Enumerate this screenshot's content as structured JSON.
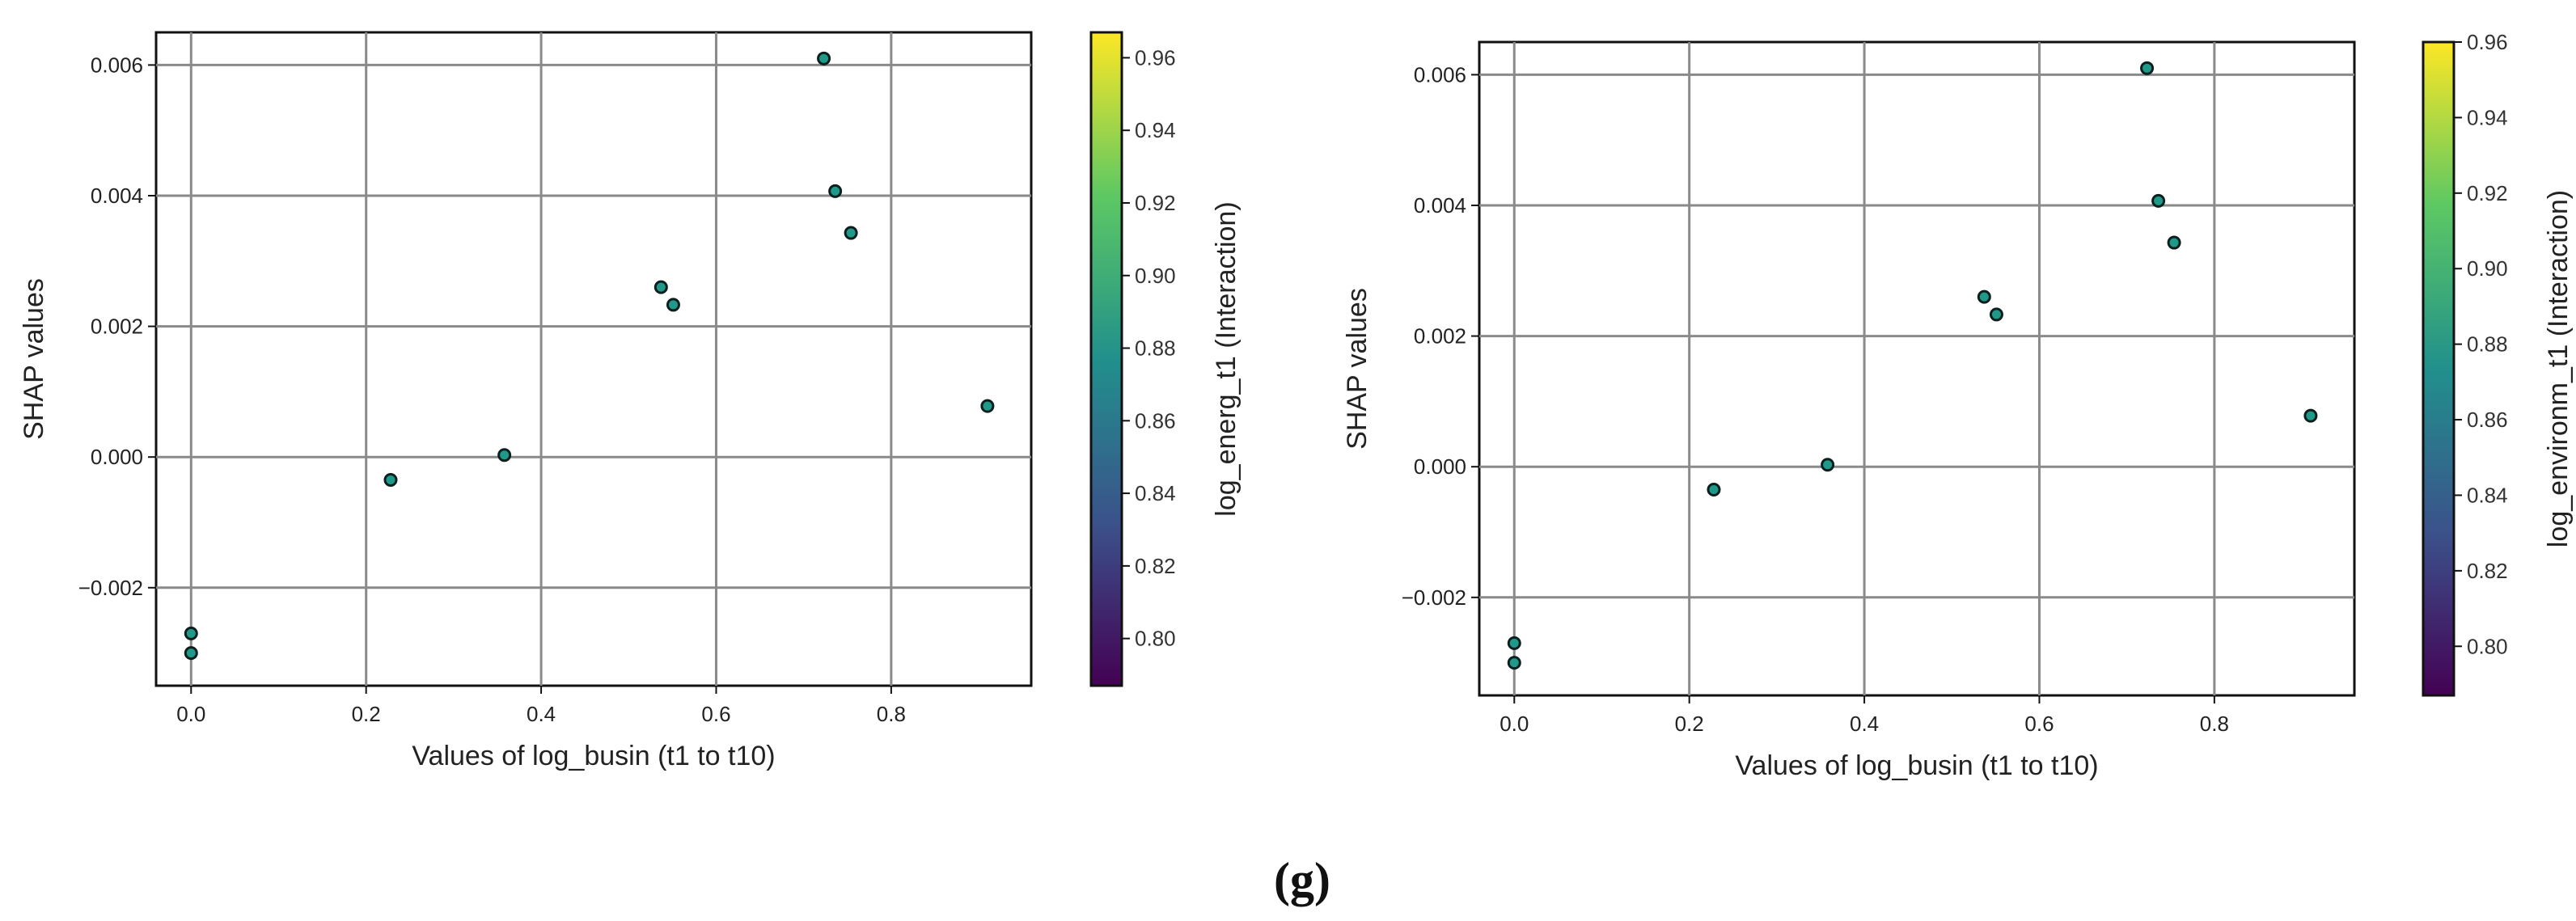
{
  "caption": "(g)",
  "chart_data": [
    {
      "type": "scatter",
      "title": "",
      "xlabel": "Values of log_busin (t1 to t10)",
      "ylabel": "SHAP values",
      "xlim": [
        -0.04,
        0.96
      ],
      "ylim": [
        -0.0035,
        0.0065
      ],
      "xticks": [
        0.0,
        0.2,
        0.4,
        0.6,
        0.8
      ],
      "xtick_labels": [
        "0.0",
        "0.2",
        "0.4",
        "0.6",
        "0.8"
      ],
      "yticks": [
        -0.002,
        0.0,
        0.002,
        0.004,
        0.006
      ],
      "ytick_labels": [
        "−0.002",
        "0.000",
        "0.002",
        "0.004",
        "0.006"
      ],
      "grid": true,
      "point_color": "#1f9a8a",
      "points": [
        {
          "x": 0.0,
          "y": -0.0027
        },
        {
          "x": 0.0,
          "y": -0.003
        },
        {
          "x": 0.228,
          "y": -0.00035
        },
        {
          "x": 0.358,
          "y": 3e-05
        },
        {
          "x": 0.537,
          "y": 0.0026
        },
        {
          "x": 0.551,
          "y": 0.00233
        },
        {
          "x": 0.723,
          "y": 0.0061
        },
        {
          "x": 0.736,
          "y": 0.00407
        },
        {
          "x": 0.754,
          "y": 0.00343
        },
        {
          "x": 0.91,
          "y": 0.00078
        }
      ],
      "colorbar": {
        "label": "log_energ_t1 (Interaction)",
        "colormap": "viridis",
        "colors": [
          "#440154",
          "#3b528b",
          "#21908c",
          "#5dc863",
          "#fde725"
        ],
        "range": [
          0.787,
          0.967
        ],
        "ticks": [
          0.8,
          0.82,
          0.84,
          0.86,
          0.88,
          0.9,
          0.92,
          0.94,
          0.96
        ],
        "tick_labels": [
          "0.80",
          "0.82",
          "0.84",
          "0.86",
          "0.88",
          "0.90",
          "0.92",
          "0.94",
          "0.96"
        ]
      }
    },
    {
      "type": "scatter",
      "title": "",
      "xlabel": "Values of log_busin (t1 to t10)",
      "ylabel": "SHAP values",
      "xlim": [
        -0.04,
        0.96
      ],
      "ylim": [
        -0.0035,
        0.0065
      ],
      "xticks": [
        0.0,
        0.2,
        0.4,
        0.6,
        0.8
      ],
      "xtick_labels": [
        "0.0",
        "0.2",
        "0.4",
        "0.6",
        "0.8"
      ],
      "yticks": [
        -0.002,
        0.0,
        0.002,
        0.004,
        0.006
      ],
      "ytick_labels": [
        "−0.002",
        "0.000",
        "0.002",
        "0.004",
        "0.006"
      ],
      "grid": true,
      "point_color": "#1f9a8a",
      "points": [
        {
          "x": 0.0,
          "y": -0.0027
        },
        {
          "x": 0.0,
          "y": -0.003
        },
        {
          "x": 0.228,
          "y": -0.00035
        },
        {
          "x": 0.358,
          "y": 3e-05
        },
        {
          "x": 0.537,
          "y": 0.0026
        },
        {
          "x": 0.551,
          "y": 0.00233
        },
        {
          "x": 0.723,
          "y": 0.0061
        },
        {
          "x": 0.736,
          "y": 0.00407
        },
        {
          "x": 0.754,
          "y": 0.00343
        },
        {
          "x": 0.91,
          "y": 0.00078
        }
      ],
      "colorbar": {
        "label": "log_environm_t1 (Interaction)",
        "colormap": "viridis",
        "colors": [
          "#440154",
          "#3b528b",
          "#21908c",
          "#5dc863",
          "#fde725"
        ],
        "range": [
          0.787,
          0.96
        ],
        "ticks": [
          0.8,
          0.82,
          0.84,
          0.86,
          0.88,
          0.9,
          0.92,
          0.94,
          0.96
        ],
        "tick_labels": [
          "0.80",
          "0.82",
          "0.84",
          "0.86",
          "0.88",
          "0.90",
          "0.92",
          "0.94",
          "0.96"
        ]
      }
    }
  ]
}
